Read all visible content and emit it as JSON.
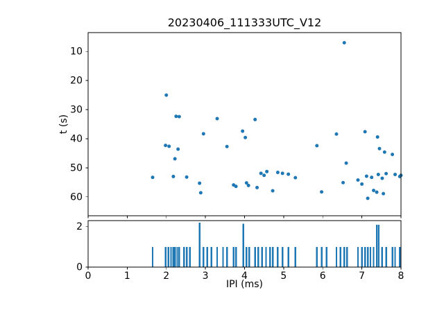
{
  "figure": {
    "title": "20230406_111333UTC_V12"
  },
  "chart_data": {
    "type": "scatter",
    "title": "20230406_111333UTC_V12",
    "accent_color": "#1f77b4",
    "top": {
      "type": "scatter",
      "ylabel": "t (s)",
      "xlim": [
        0,
        8
      ],
      "ylim": [
        3.5,
        66.5
      ],
      "y_inverted": true,
      "yticks": [
        10,
        20,
        30,
        40,
        50,
        60
      ],
      "marker_color": "#1f77b4",
      "points": [
        [
          1.65,
          53.3
        ],
        [
          1.98,
          42.3
        ],
        [
          2.0,
          25.0
        ],
        [
          2.07,
          42.6
        ],
        [
          2.18,
          53.0
        ],
        [
          2.22,
          46.9
        ],
        [
          2.25,
          32.3
        ],
        [
          2.33,
          32.4
        ],
        [
          2.3,
          43.6
        ],
        [
          2.52,
          53.2
        ],
        [
          2.85,
          55.3
        ],
        [
          2.88,
          58.6
        ],
        [
          2.95,
          38.3
        ],
        [
          3.3,
          33.1
        ],
        [
          3.55,
          42.7
        ],
        [
          3.72,
          55.9
        ],
        [
          3.78,
          56.4
        ],
        [
          3.95,
          37.4
        ],
        [
          4.02,
          39.6
        ],
        [
          4.05,
          55.2
        ],
        [
          4.1,
          56.1
        ],
        [
          4.27,
          33.4
        ],
        [
          4.32,
          56.8
        ],
        [
          4.42,
          51.9
        ],
        [
          4.5,
          52.6
        ],
        [
          4.57,
          51.3
        ],
        [
          4.72,
          57.9
        ],
        [
          4.85,
          51.6
        ],
        [
          4.97,
          51.9
        ],
        [
          5.12,
          52.2
        ],
        [
          5.3,
          53.4
        ],
        [
          5.85,
          42.4
        ],
        [
          5.97,
          58.3
        ],
        [
          6.35,
          38.4
        ],
        [
          6.52,
          55.1
        ],
        [
          6.55,
          7.0
        ],
        [
          6.6,
          48.4
        ],
        [
          6.9,
          54.2
        ],
        [
          7.0,
          55.6
        ],
        [
          7.08,
          37.6
        ],
        [
          7.12,
          52.9
        ],
        [
          7.15,
          60.5
        ],
        [
          7.25,
          53.3
        ],
        [
          7.3,
          57.8
        ],
        [
          7.38,
          58.4
        ],
        [
          7.4,
          39.4
        ],
        [
          7.42,
          52.3
        ],
        [
          7.45,
          43.4
        ],
        [
          7.52,
          53.6
        ],
        [
          7.55,
          58.9
        ],
        [
          7.58,
          44.6
        ],
        [
          7.62,
          52.0
        ],
        [
          7.78,
          45.4
        ],
        [
          7.85,
          52.3
        ],
        [
          7.97,
          53.0
        ],
        [
          8.0,
          52.6
        ]
      ]
    },
    "bottom": {
      "type": "bar",
      "xlabel": "IPI (ms)",
      "xlim": [
        0,
        8
      ],
      "ylim": [
        0,
        2.3
      ],
      "yticks": [
        0,
        2
      ],
      "xticks": [
        0,
        1,
        2,
        3,
        4,
        5,
        6,
        7,
        8
      ],
      "bar_color": "#1f77b4",
      "bars": [
        [
          1.65,
          1
        ],
        [
          1.98,
          1
        ],
        [
          2.05,
          1
        ],
        [
          2.12,
          1
        ],
        [
          2.18,
          1
        ],
        [
          2.22,
          1
        ],
        [
          2.28,
          1
        ],
        [
          2.33,
          1
        ],
        [
          2.45,
          1
        ],
        [
          2.52,
          1
        ],
        [
          2.6,
          1
        ],
        [
          2.85,
          2.2
        ],
        [
          2.95,
          1
        ],
        [
          3.05,
          1
        ],
        [
          3.15,
          1
        ],
        [
          3.3,
          1
        ],
        [
          3.45,
          1
        ],
        [
          3.55,
          1
        ],
        [
          3.72,
          1
        ],
        [
          3.78,
          1
        ],
        [
          3.97,
          2.15
        ],
        [
          4.05,
          1
        ],
        [
          4.12,
          1
        ],
        [
          4.27,
          1
        ],
        [
          4.35,
          1
        ],
        [
          4.45,
          1
        ],
        [
          4.55,
          1
        ],
        [
          4.65,
          1
        ],
        [
          4.72,
          1
        ],
        [
          4.85,
          1
        ],
        [
          4.97,
          1
        ],
        [
          5.12,
          1
        ],
        [
          5.3,
          1
        ],
        [
          5.85,
          1
        ],
        [
          5.97,
          1
        ],
        [
          6.1,
          1
        ],
        [
          6.35,
          1
        ],
        [
          6.45,
          1
        ],
        [
          6.55,
          1
        ],
        [
          6.62,
          1
        ],
        [
          6.9,
          1
        ],
        [
          7.0,
          1
        ],
        [
          7.08,
          1
        ],
        [
          7.15,
          1
        ],
        [
          7.22,
          1
        ],
        [
          7.3,
          1
        ],
        [
          7.38,
          2.1
        ],
        [
          7.43,
          2.1
        ],
        [
          7.52,
          1
        ],
        [
          7.62,
          1
        ],
        [
          7.78,
          1
        ],
        [
          7.85,
          1
        ],
        [
          7.97,
          1
        ]
      ]
    }
  }
}
